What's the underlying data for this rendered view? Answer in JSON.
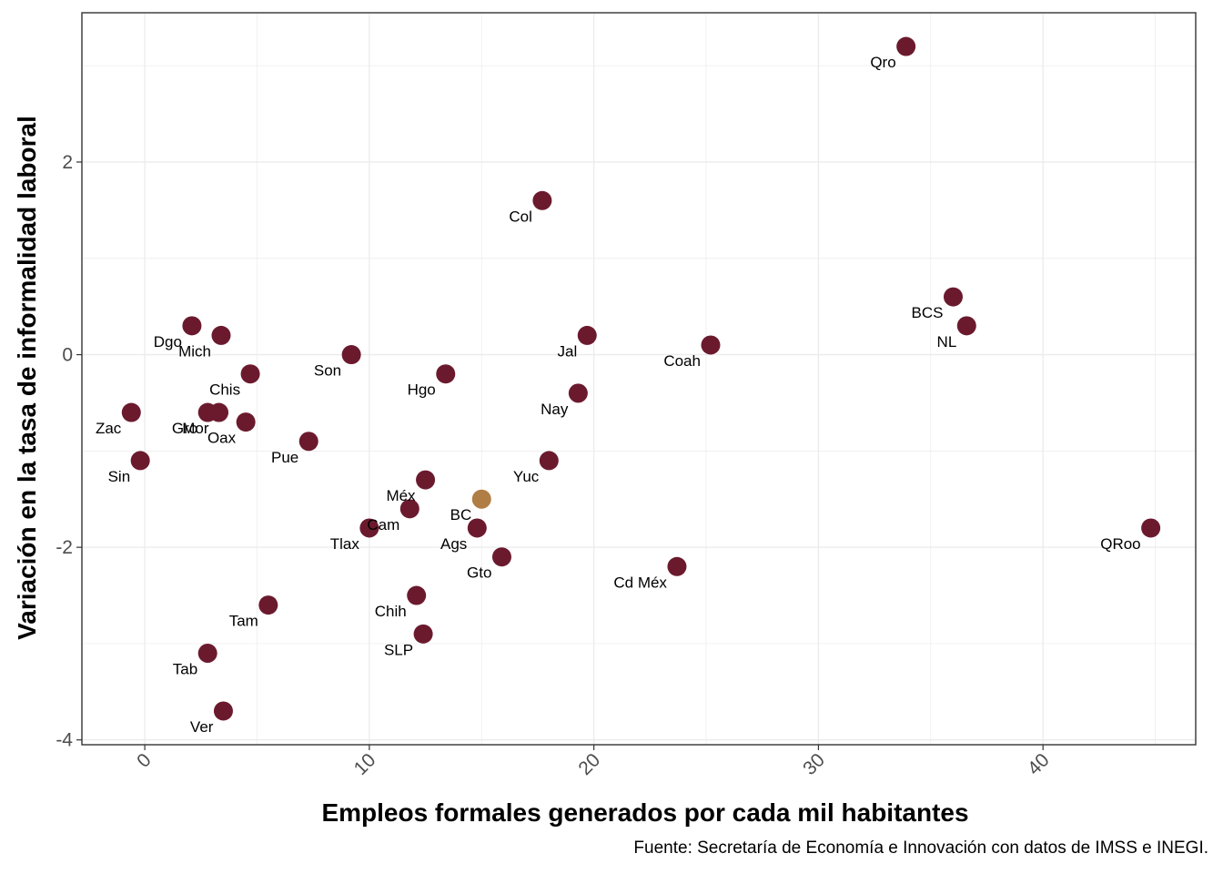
{
  "caption": "Fuente: Secretaría de Economía e Innovación con datos de IMSS e INEGI.",
  "colors": {
    "point": "#6b1a2e",
    "highlight": "#b07d45",
    "grid": "#ebebeb",
    "border": "#333333"
  },
  "chart_data": {
    "type": "scatter",
    "xlabel": "Empleos formales generados por cada mil habitantes",
    "ylabel": "Variación en la tasa de informalidad laboral",
    "xlim": [
      -2.8,
      46.8
    ],
    "ylim": [
      -4.05,
      3.55
    ],
    "xticks": [
      0,
      10,
      20,
      30,
      40
    ],
    "yticks": [
      -4,
      -2,
      0,
      2
    ],
    "grid": true,
    "points": [
      {
        "label": "Qro",
        "x": 33.9,
        "y": 3.2
      },
      {
        "label": "Col",
        "x": 17.7,
        "y": 1.6
      },
      {
        "label": "BCS",
        "x": 36.0,
        "y": 0.6
      },
      {
        "label": "NL",
        "x": 36.6,
        "y": 0.3
      },
      {
        "label": "Coah",
        "x": 25.2,
        "y": 0.1
      },
      {
        "label": "Jal",
        "x": 19.7,
        "y": 0.2
      },
      {
        "label": "Nay",
        "x": 19.3,
        "y": -0.4
      },
      {
        "label": "Yuc",
        "x": 18.0,
        "y": -1.1
      },
      {
        "label": "QRoo",
        "x": 44.8,
        "y": -1.8
      },
      {
        "label": "Cd Méx",
        "x": 23.7,
        "y": -2.2
      },
      {
        "label": "Gto",
        "x": 15.9,
        "y": -2.1
      },
      {
        "label": "Ags",
        "x": 14.8,
        "y": -1.8
      },
      {
        "label": "BC",
        "x": 15.0,
        "y": -1.5,
        "highlight": true
      },
      {
        "label": "Méx",
        "x": 12.5,
        "y": -1.3
      },
      {
        "label": "Cam",
        "x": 11.8,
        "y": -1.6
      },
      {
        "label": "Tlax",
        "x": 10.0,
        "y": -1.8
      },
      {
        "label": "Chih",
        "x": 12.1,
        "y": -2.5
      },
      {
        "label": "SLP",
        "x": 12.4,
        "y": -2.9
      },
      {
        "label": "Hgo",
        "x": 13.4,
        "y": -0.2
      },
      {
        "label": "Son",
        "x": 9.2,
        "y": 0.0
      },
      {
        "label": "Pue",
        "x": 7.3,
        "y": -0.9
      },
      {
        "label": "Tam",
        "x": 5.5,
        "y": -2.6
      },
      {
        "label": "Tab",
        "x": 2.8,
        "y": -3.1
      },
      {
        "label": "Ver",
        "x": 3.5,
        "y": -3.7
      },
      {
        "label": "Dgo",
        "x": 2.1,
        "y": 0.3
      },
      {
        "label": "Mich",
        "x": 3.4,
        "y": 0.2
      },
      {
        "label": "Chis",
        "x": 4.7,
        "y": -0.2
      },
      {
        "label": "Oax",
        "x": 4.5,
        "y": -0.7
      },
      {
        "label": "Gro",
        "x": 2.8,
        "y": -0.6
      },
      {
        "label": "Mor",
        "x": 3.3,
        "y": -0.6
      },
      {
        "label": "Zac",
        "x": -0.6,
        "y": -0.6
      },
      {
        "label": "Sin",
        "x": -0.2,
        "y": -1.1
      }
    ]
  }
}
